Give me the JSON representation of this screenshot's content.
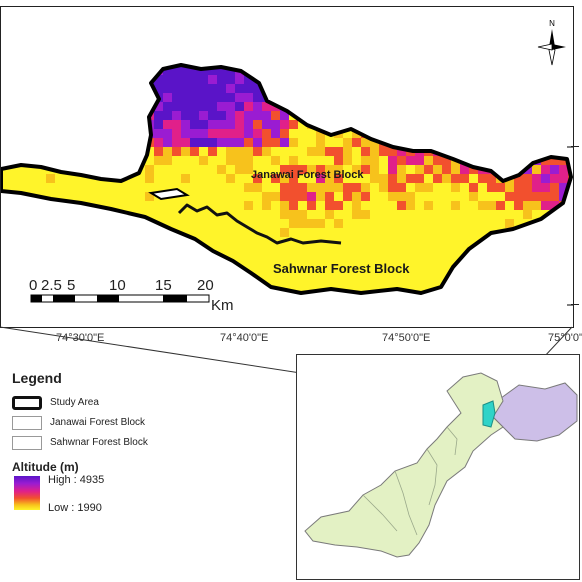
{
  "map": {
    "block_labels": {
      "janawai": "Janawai Forest Block",
      "sahwnar": "Sahwnar Forest Block"
    },
    "scale_bar": {
      "ticks": [
        "0",
        "2.5",
        "5",
        "10",
        "15",
        "20"
      ],
      "unit": "Km"
    },
    "longitude_labels": [
      "74°30'0\"E",
      "74°40'0\"E",
      "74°50'0\"E",
      "75°0'0\""
    ],
    "north_arrow": {
      "letter": "N",
      "icon": "north-arrow-icon"
    },
    "colors": {
      "frame": "#222222",
      "study_outline": "#000000"
    }
  },
  "legend": {
    "title": "Legend",
    "items": [
      {
        "label": "Study Area"
      },
      {
        "label": "Janawai Forest Block"
      },
      {
        "label": "Sahwnar Forest Block"
      }
    ],
    "altitude": {
      "title": "Altitude (m)",
      "high_label": "High : 4935",
      "low_label": "Low : 1990",
      "ramp_colors": [
        "#5a14c8",
        "#9a1cd2",
        "#e0208a",
        "#f2502e",
        "#f7c21c",
        "#fff42a"
      ]
    }
  },
  "inset": {
    "colors": {
      "country_fill": "#e3f1c4",
      "disputed_fill": "#cdbfe8",
      "study_fill": "#2fd3c8",
      "border": "#7a7a7a"
    }
  }
}
